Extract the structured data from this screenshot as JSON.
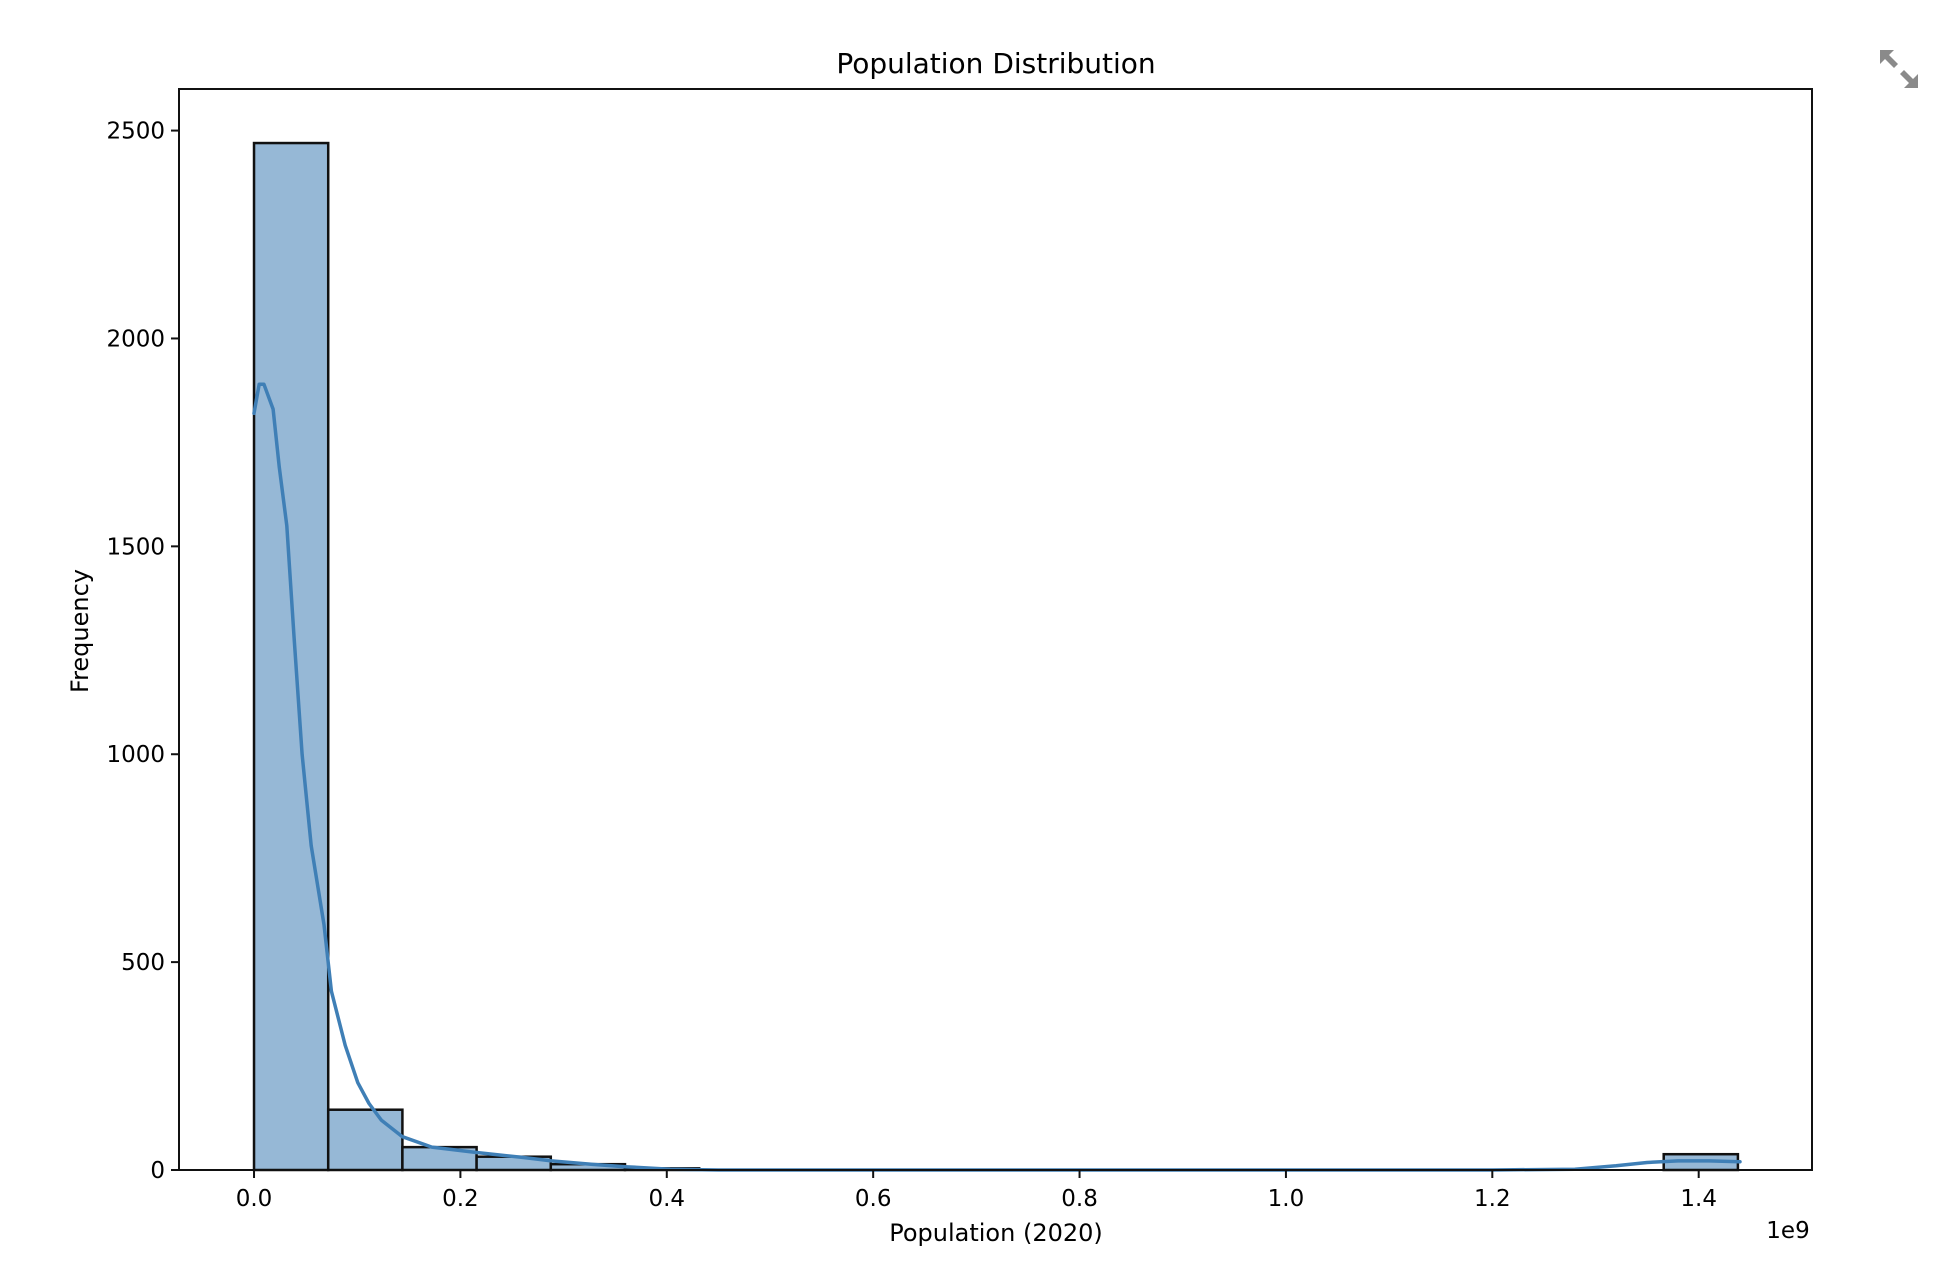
{
  "chart_data": {
    "type": "bar",
    "title": "Population Distribution",
    "xlabel": "Population (2020)",
    "ylabel": "Frequency",
    "x_offset_label": "1e9",
    "xlim": [
      -0.0727,
      1.5098
    ],
    "ylim": [
      0,
      2600
    ],
    "x_ticks": [
      0.0,
      0.2,
      0.4,
      0.6,
      0.8,
      1.0,
      1.2,
      1.4
    ],
    "x_tick_labels": [
      "0.0",
      "0.2",
      "0.4",
      "0.6",
      "0.8",
      "1.0",
      "1.2",
      "1.4"
    ],
    "y_ticks": [
      0,
      500,
      1000,
      1500,
      2000,
      2500
    ],
    "y_tick_labels": [
      "0",
      "500",
      "1000",
      "1500",
      "2000",
      "2500"
    ],
    "bin_width": 0.0719,
    "bins": [
      {
        "start": 0.0,
        "count": 2470
      },
      {
        "start": 0.0719,
        "count": 145
      },
      {
        "start": 0.1438,
        "count": 55
      },
      {
        "start": 0.2157,
        "count": 32
      },
      {
        "start": 0.2876,
        "count": 14
      },
      {
        "start": 0.3595,
        "count": 4
      },
      {
        "start": 1.3661,
        "count": 38
      }
    ],
    "kde": {
      "name": "",
      "x": [
        0.0,
        0.005,
        0.0096,
        0.0185,
        0.0245,
        0.0318,
        0.0388,
        0.0466,
        0.0554,
        0.0678,
        0.075,
        0.0884,
        0.1006,
        0.1114,
        0.1233,
        0.1438,
        0.1723,
        0.2157,
        0.2611,
        0.2882,
        0.3268,
        0.3595,
        0.4033,
        0.45,
        0.6,
        0.8,
        1.0,
        1.2,
        1.28,
        1.32,
        1.35,
        1.38,
        1.41,
        1.44
      ],
      "y": [
        1820,
        1890,
        1890,
        1830,
        1690,
        1550,
        1280,
        1000,
        780,
        590,
        430,
        300,
        210,
        160,
        120,
        80,
        55,
        42,
        30,
        22,
        14,
        8,
        2,
        0,
        0,
        0,
        0,
        0,
        2,
        10,
        18,
        22,
        22,
        20
      ]
    },
    "grid": false,
    "legend": "none",
    "bar_color": "#96b8d6",
    "line_color": "#3f7fb6"
  },
  "toolbar": {
    "expand_icon": "expand-arrows-icon"
  }
}
